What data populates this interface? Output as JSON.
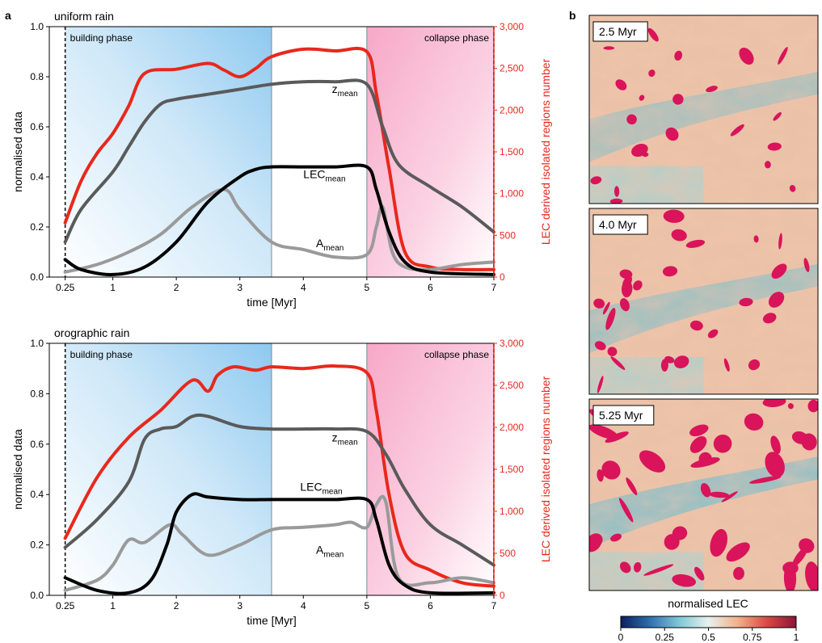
{
  "figure": {
    "panel_a": "a",
    "panel_b": "b",
    "colorbar": {
      "title": "normalised LEC",
      "ticks": [
        "0",
        "0.25",
        "0.5",
        "0.75",
        "1"
      ],
      "colors": [
        "#0b1f5e",
        "#2f6fb0",
        "#7fc8d6",
        "#e7f1ee",
        "#f3b08a",
        "#d84a46",
        "#8c1436"
      ]
    },
    "maps": [
      {
        "label": "2.5 Myr",
        "lec_fraction": 0.25
      },
      {
        "label": "4.0 Myr",
        "lec_fraction": 0.45
      },
      {
        "label": "5.25 Myr",
        "lec_fraction": 0.8
      }
    ]
  },
  "colors": {
    "z": "#5a5a5a",
    "lec": "#000000",
    "a": "#9a9a9a",
    "regions": "#e8281c",
    "building": "#8ec9f0",
    "collapse": "#f7a8c8"
  },
  "chart_data": [
    {
      "type": "line",
      "title": "uniform rain",
      "xlabel": "time [Myr]",
      "ylabel": "normalised data",
      "y2label": "LEC derived isolated regions number",
      "xlim": [
        0.0,
        7.0
      ],
      "ylim": [
        0.0,
        1.0
      ],
      "y2lim": [
        0,
        3000
      ],
      "xticks": [
        0.25,
        1,
        2,
        3,
        4,
        5,
        6,
        7
      ],
      "xticklabels": [
        "0.25",
        "1",
        "2",
        "3",
        "4",
        "5",
        "6",
        "7"
      ],
      "yticks": [
        0.0,
        0.2,
        0.4,
        0.6,
        0.8,
        1.0
      ],
      "yticklabels": [
        "0.0",
        "0.2",
        "0.4",
        "0.6",
        "0.8",
        "1.0"
      ],
      "y2ticks": [
        0,
        500,
        1000,
        1500,
        2000,
        2500,
        3000
      ],
      "y2ticklabels": [
        "0",
        "500",
        "1,000",
        "1,500",
        "2,000",
        "2,500",
        "3,000"
      ],
      "phases": [
        {
          "label": "building phase",
          "x": [
            0.25,
            3.5
          ]
        },
        {
          "label": "collapse phase",
          "x": [
            5.0,
            7.0
          ]
        }
      ],
      "series": [
        {
          "name": "z_mean",
          "label_main": "z",
          "label_sub": "mean",
          "axis": "left",
          "color_key": "z",
          "label_at": [
            4.45,
            0.735
          ],
          "x": [
            0.25,
            0.5,
            1.0,
            1.25,
            1.5,
            1.75,
            2.0,
            2.5,
            3.0,
            3.5,
            4.0,
            4.5,
            5.0,
            5.25,
            5.5,
            6.0,
            6.5,
            7.0
          ],
          "y": [
            0.14,
            0.27,
            0.42,
            0.52,
            0.62,
            0.69,
            0.71,
            0.73,
            0.75,
            0.77,
            0.78,
            0.78,
            0.77,
            0.6,
            0.45,
            0.36,
            0.28,
            0.18
          ]
        },
        {
          "name": "LEC_mean",
          "label_main": "LEC",
          "label_sub": "mean",
          "axis": "left",
          "color_key": "lec",
          "label_at": [
            4.0,
            0.395
          ],
          "x": [
            0.25,
            0.5,
            1.0,
            1.5,
            2.0,
            2.5,
            3.0,
            3.25,
            3.5,
            4.0,
            4.5,
            5.0,
            5.15,
            5.35,
            5.6,
            6.0,
            7.0
          ],
          "y": [
            0.07,
            0.03,
            0.01,
            0.04,
            0.14,
            0.3,
            0.4,
            0.43,
            0.44,
            0.44,
            0.44,
            0.44,
            0.35,
            0.18,
            0.06,
            0.02,
            0.01
          ]
        },
        {
          "name": "A_mean",
          "label_main": "A",
          "label_sub": "mean",
          "axis": "left",
          "color_key": "a",
          "label_at": [
            4.2,
            0.12
          ],
          "x": [
            0.25,
            0.75,
            1.25,
            1.75,
            2.25,
            2.75,
            3.0,
            3.5,
            4.0,
            4.5,
            5.0,
            5.15,
            5.25,
            5.4,
            5.6,
            6.0,
            6.5,
            7.0
          ],
          "y": [
            0.02,
            0.05,
            0.1,
            0.17,
            0.28,
            0.35,
            0.27,
            0.14,
            0.11,
            0.08,
            0.09,
            0.2,
            0.28,
            0.1,
            0.04,
            0.03,
            0.05,
            0.06
          ]
        },
        {
          "name": "LEC derived isolated regions number",
          "axis": "right",
          "color_key": "regions",
          "x": [
            0.25,
            0.5,
            0.75,
            1.0,
            1.25,
            1.5,
            2.0,
            2.5,
            2.75,
            3.0,
            3.25,
            3.5,
            4.0,
            4.5,
            5.0,
            5.15,
            5.35,
            5.6,
            6.0,
            6.5,
            7.0
          ],
          "y": [
            650,
            1150,
            1480,
            1720,
            2050,
            2440,
            2490,
            2560,
            2480,
            2400,
            2500,
            2640,
            2730,
            2710,
            2700,
            2200,
            1300,
            300,
            120,
            90,
            90
          ]
        }
      ]
    },
    {
      "type": "line",
      "title": "orographic rain",
      "xlabel": "time [Myr]",
      "ylabel": "normalised data",
      "y2label": "LEC derived isolated regions number",
      "xlim": [
        0.0,
        7.0
      ],
      "ylim": [
        0.0,
        1.0
      ],
      "y2lim": [
        0,
        3000
      ],
      "xticks": [
        0.25,
        1,
        2,
        3,
        4,
        5,
        6,
        7
      ],
      "xticklabels": [
        "0.25",
        "1",
        "2",
        "3",
        "4",
        "5",
        "6",
        "7"
      ],
      "yticks": [
        0.0,
        0.2,
        0.4,
        0.6,
        0.8,
        1.0
      ],
      "yticklabels": [
        "0.0",
        "0.2",
        "0.4",
        "0.6",
        "0.8",
        "1.0"
      ],
      "y2ticks": [
        0,
        500,
        1000,
        1500,
        2000,
        2500,
        3000
      ],
      "y2ticklabels": [
        "0",
        "500",
        "1,000",
        "1,500",
        "2,000",
        "2,500",
        "3,000"
      ],
      "phases": [
        {
          "label": "building phase",
          "x": [
            0.25,
            3.5
          ]
        },
        {
          "label": "collapse phase",
          "x": [
            5.0,
            7.0
          ]
        }
      ],
      "series": [
        {
          "name": "z_mean",
          "label_main": "z",
          "label_sub": "mean",
          "axis": "left",
          "color_key": "z",
          "label_at": [
            4.45,
            0.61
          ],
          "x": [
            0.25,
            0.75,
            1.25,
            1.5,
            1.75,
            2.0,
            2.25,
            2.5,
            3.0,
            3.5,
            4.0,
            4.5,
            5.0,
            5.3,
            5.6,
            6.0,
            6.5,
            7.0
          ],
          "y": [
            0.19,
            0.3,
            0.45,
            0.62,
            0.66,
            0.67,
            0.71,
            0.71,
            0.67,
            0.66,
            0.66,
            0.66,
            0.65,
            0.56,
            0.42,
            0.28,
            0.2,
            0.12
          ]
        },
        {
          "name": "LEC_mean",
          "label_main": "LEC",
          "label_sub": "mean",
          "axis": "left",
          "color_key": "lec",
          "label_at": [
            3.95,
            0.415
          ],
          "x": [
            0.25,
            0.75,
            1.25,
            1.6,
            1.85,
            2.0,
            2.25,
            2.5,
            3.0,
            3.5,
            4.0,
            4.5,
            5.0,
            5.15,
            5.35,
            5.6,
            6.0,
            7.0
          ],
          "y": [
            0.07,
            0.02,
            0.01,
            0.06,
            0.2,
            0.33,
            0.4,
            0.39,
            0.38,
            0.38,
            0.38,
            0.38,
            0.38,
            0.3,
            0.12,
            0.04,
            0.01,
            0.01
          ]
        },
        {
          "name": "A_mean",
          "label_main": "A",
          "label_sub": "mean",
          "axis": "left",
          "color_key": "a",
          "label_at": [
            4.2,
            0.165
          ],
          "x": [
            0.25,
            0.75,
            1.0,
            1.25,
            1.5,
            1.9,
            2.1,
            2.5,
            3.0,
            3.5,
            4.0,
            4.5,
            4.75,
            5.0,
            5.15,
            5.3,
            5.5,
            6.0,
            6.5,
            7.0
          ],
          "y": [
            0.02,
            0.06,
            0.12,
            0.22,
            0.21,
            0.28,
            0.24,
            0.16,
            0.2,
            0.26,
            0.27,
            0.28,
            0.29,
            0.27,
            0.36,
            0.37,
            0.07,
            0.05,
            0.07,
            0.05
          ]
        },
        {
          "name": "LEC derived isolated regions number",
          "axis": "right",
          "color_key": "regions",
          "x": [
            0.25,
            0.75,
            1.25,
            1.75,
            2.25,
            2.5,
            2.65,
            2.9,
            3.25,
            3.5,
            4.0,
            4.5,
            5.0,
            5.15,
            5.35,
            5.6,
            6.0,
            6.5,
            7.0
          ],
          "y": [
            680,
            1400,
            1880,
            2200,
            2560,
            2430,
            2620,
            2720,
            2680,
            2720,
            2700,
            2730,
            2650,
            2200,
            1200,
            500,
            300,
            150,
            110
          ]
        }
      ]
    }
  ]
}
